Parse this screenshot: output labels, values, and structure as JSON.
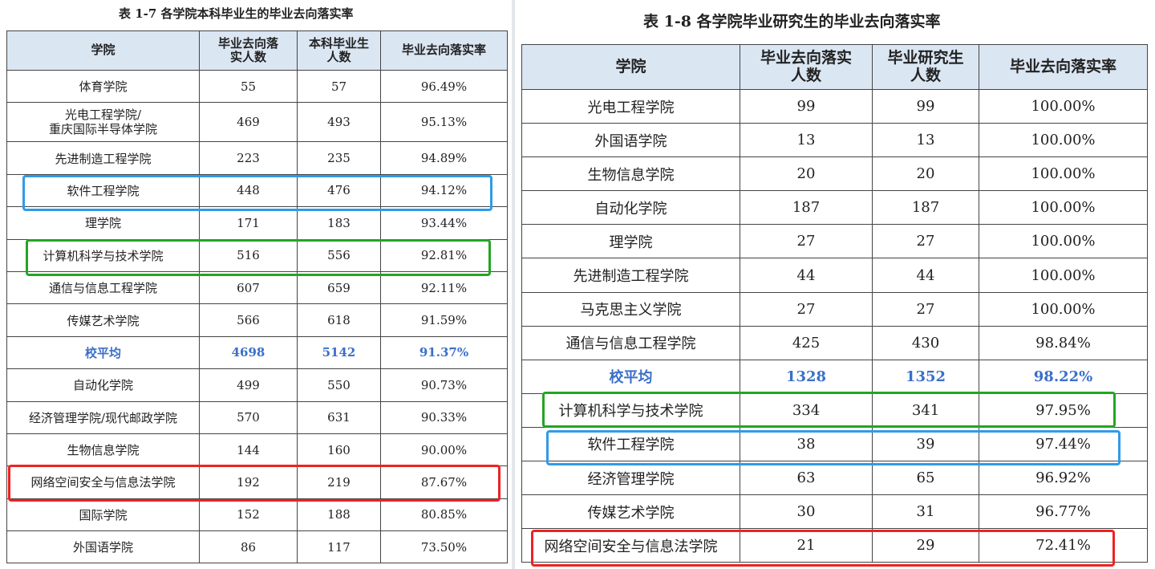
{
  "left": {
    "caption": "表 1-7   各学院本科毕业生的毕业去向落实率",
    "headers": [
      "学院",
      "毕业去向落\n实人数",
      "本科毕业生\n人数",
      "毕业去向落实率"
    ],
    "rows": [
      [
        "体育学院",
        "55",
        "57",
        "96.49%"
      ],
      [
        "光电工程学院/\n重庆国际半导体学院",
        "469",
        "493",
        "95.13%"
      ],
      [
        "先进制造工程学院",
        "223",
        "235",
        "94.89%"
      ],
      [
        "软件工程学院",
        "448",
        "476",
        "94.12%"
      ],
      [
        "理学院",
        "171",
        "183",
        "93.44%"
      ],
      [
        "计算机科学与技术学院",
        "516",
        "556",
        "92.81%"
      ],
      [
        "通信与信息工程学院",
        "607",
        "659",
        "92.11%"
      ],
      [
        "传媒艺术学院",
        "566",
        "618",
        "91.59%"
      ],
      [
        "校平均",
        "4698",
        "5142",
        "91.37%"
      ],
      [
        "自动化学院",
        "499",
        "550",
        "90.73%"
      ],
      [
        "经济管理学院/现代邮政学院",
        "570",
        "631",
        "90.33%"
      ],
      [
        "生物信息学院",
        "144",
        "160",
        "90.00%"
      ],
      [
        "网络空间安全与信息法学院",
        "192",
        "219",
        "87.67%"
      ],
      [
        "国际学院",
        "152",
        "188",
        "80.85%"
      ],
      [
        "外国语学院",
        "86",
        "117",
        "73.50%"
      ]
    ]
  },
  "right": {
    "caption": "表 1-8        各学院毕业研究生的毕业去向落实率",
    "headers": [
      "学院",
      "毕业去向落实\n人数",
      "毕业研究生\n人数",
      "毕业去向落实率"
    ],
    "rows": [
      [
        "光电工程学院",
        "99",
        "99",
        "100.00%"
      ],
      [
        "外国语学院",
        "13",
        "13",
        "100.00%"
      ],
      [
        "生物信息学院",
        "20",
        "20",
        "100.00%"
      ],
      [
        "自动化学院",
        "187",
        "187",
        "100.00%"
      ],
      [
        "理学院",
        "27",
        "27",
        "100.00%"
      ],
      [
        "先进制造工程学院",
        "44",
        "44",
        "100.00%"
      ],
      [
        "马克思主义学院",
        "27",
        "27",
        "100.00%"
      ],
      [
        "通信与信息工程学院",
        "425",
        "430",
        "98.84%"
      ],
      [
        "校平均",
        "1328",
        "1352",
        "98.22%"
      ],
      [
        "计算机科学与技术学院",
        "334",
        "341",
        "97.95%"
      ],
      [
        "软件工程学院",
        "38",
        "39",
        "97.44%"
      ],
      [
        "经济管理学院",
        "63",
        "65",
        "96.92%"
      ],
      [
        "传媒艺术学院",
        "30",
        "31",
        "96.77%"
      ],
      [
        "网络空间安全与信息法学院",
        "21",
        "29",
        "72.41%"
      ]
    ]
  },
  "highlight_colors": {
    "software": "#2f9be8",
    "computer": "#23a523",
    "cyber": "#ee2222"
  }
}
